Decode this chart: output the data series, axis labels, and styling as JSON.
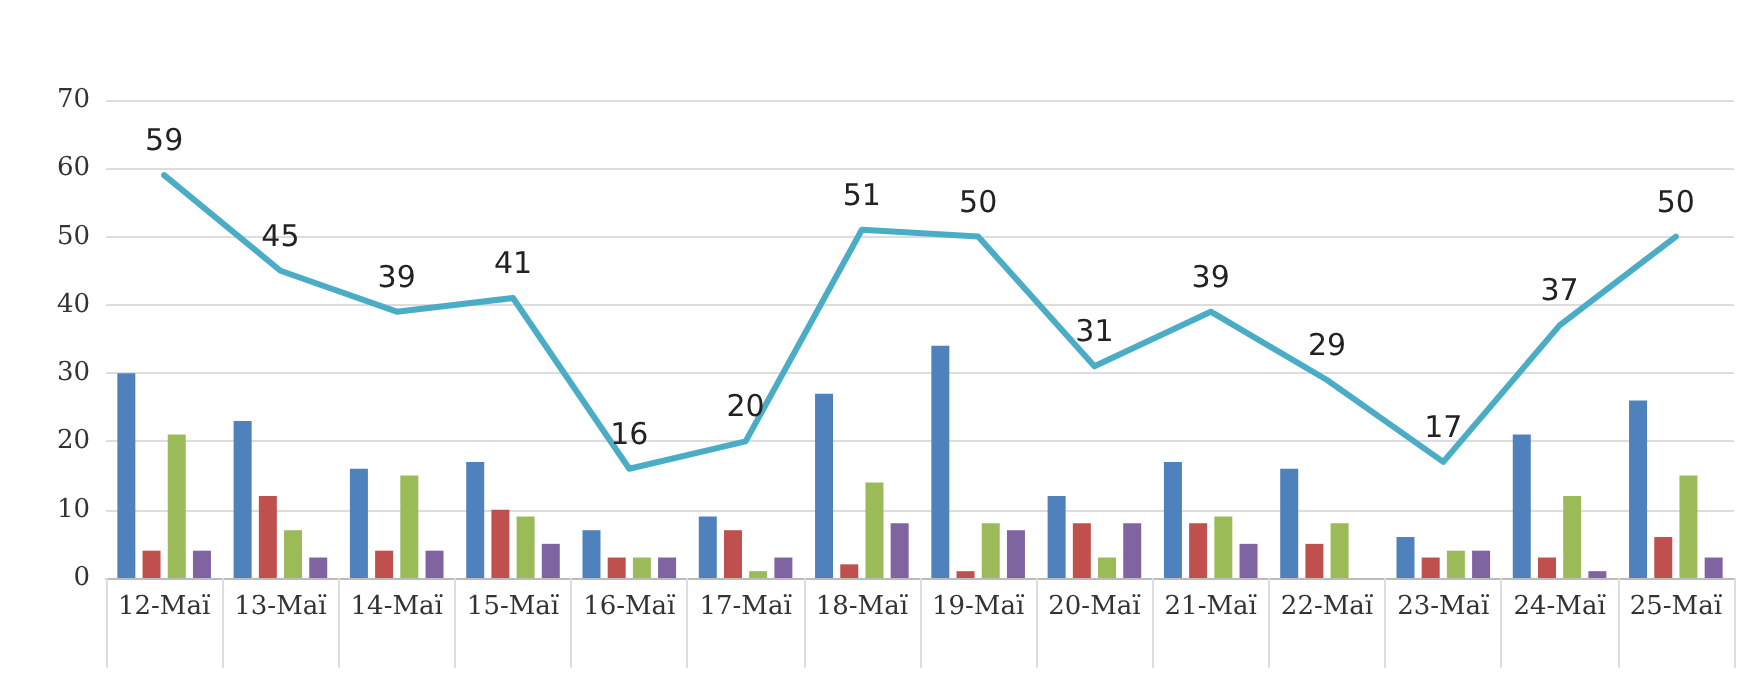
{
  "chart_data": {
    "type": "bar",
    "categories": [
      "12-Маї",
      "13-Маї",
      "14-Маї",
      "15-Маї",
      "16-Маї",
      "17-Маї",
      "18-Маї",
      "19-Маї",
      "20-Маї",
      "21-Маї",
      "22-Маї",
      "23-Маї",
      "24-Маї",
      "25-Маї"
    ],
    "series": [
      {
        "color": "#4f81bd",
        "values": [
          30,
          23,
          16,
          17,
          7,
          9,
          27,
          34,
          12,
          17,
          16,
          6,
          21,
          26
        ]
      },
      {
        "color": "#c0504d",
        "values": [
          4,
          12,
          4,
          10,
          3,
          7,
          2,
          1,
          8,
          8,
          5,
          3,
          3,
          6
        ]
      },
      {
        "color": "#9bbb59",
        "values": [
          21,
          7,
          15,
          9,
          3,
          1,
          14,
          8,
          3,
          9,
          8,
          4,
          12,
          15
        ]
      },
      {
        "color": "#8064a2",
        "values": [
          4,
          3,
          4,
          5,
          3,
          3,
          8,
          7,
          8,
          5,
          0,
          4,
          1,
          3
        ]
      },
      {
        "type": "line",
        "color": "#4bacc6",
        "values": [
          59,
          45,
          39,
          41,
          16,
          20,
          51,
          50,
          31,
          39,
          29,
          17,
          37,
          50
        ],
        "value_labels": [
          "59",
          "45",
          "39",
          "41",
          "16",
          "20",
          "51",
          "50",
          "31",
          "39",
          "29",
          "17",
          "37",
          "50"
        ]
      }
    ],
    "ylim": [
      0,
      70
    ],
    "yticks": [
      0,
      10,
      20,
      30,
      40,
      50,
      60,
      70
    ],
    "grid": "y"
  }
}
